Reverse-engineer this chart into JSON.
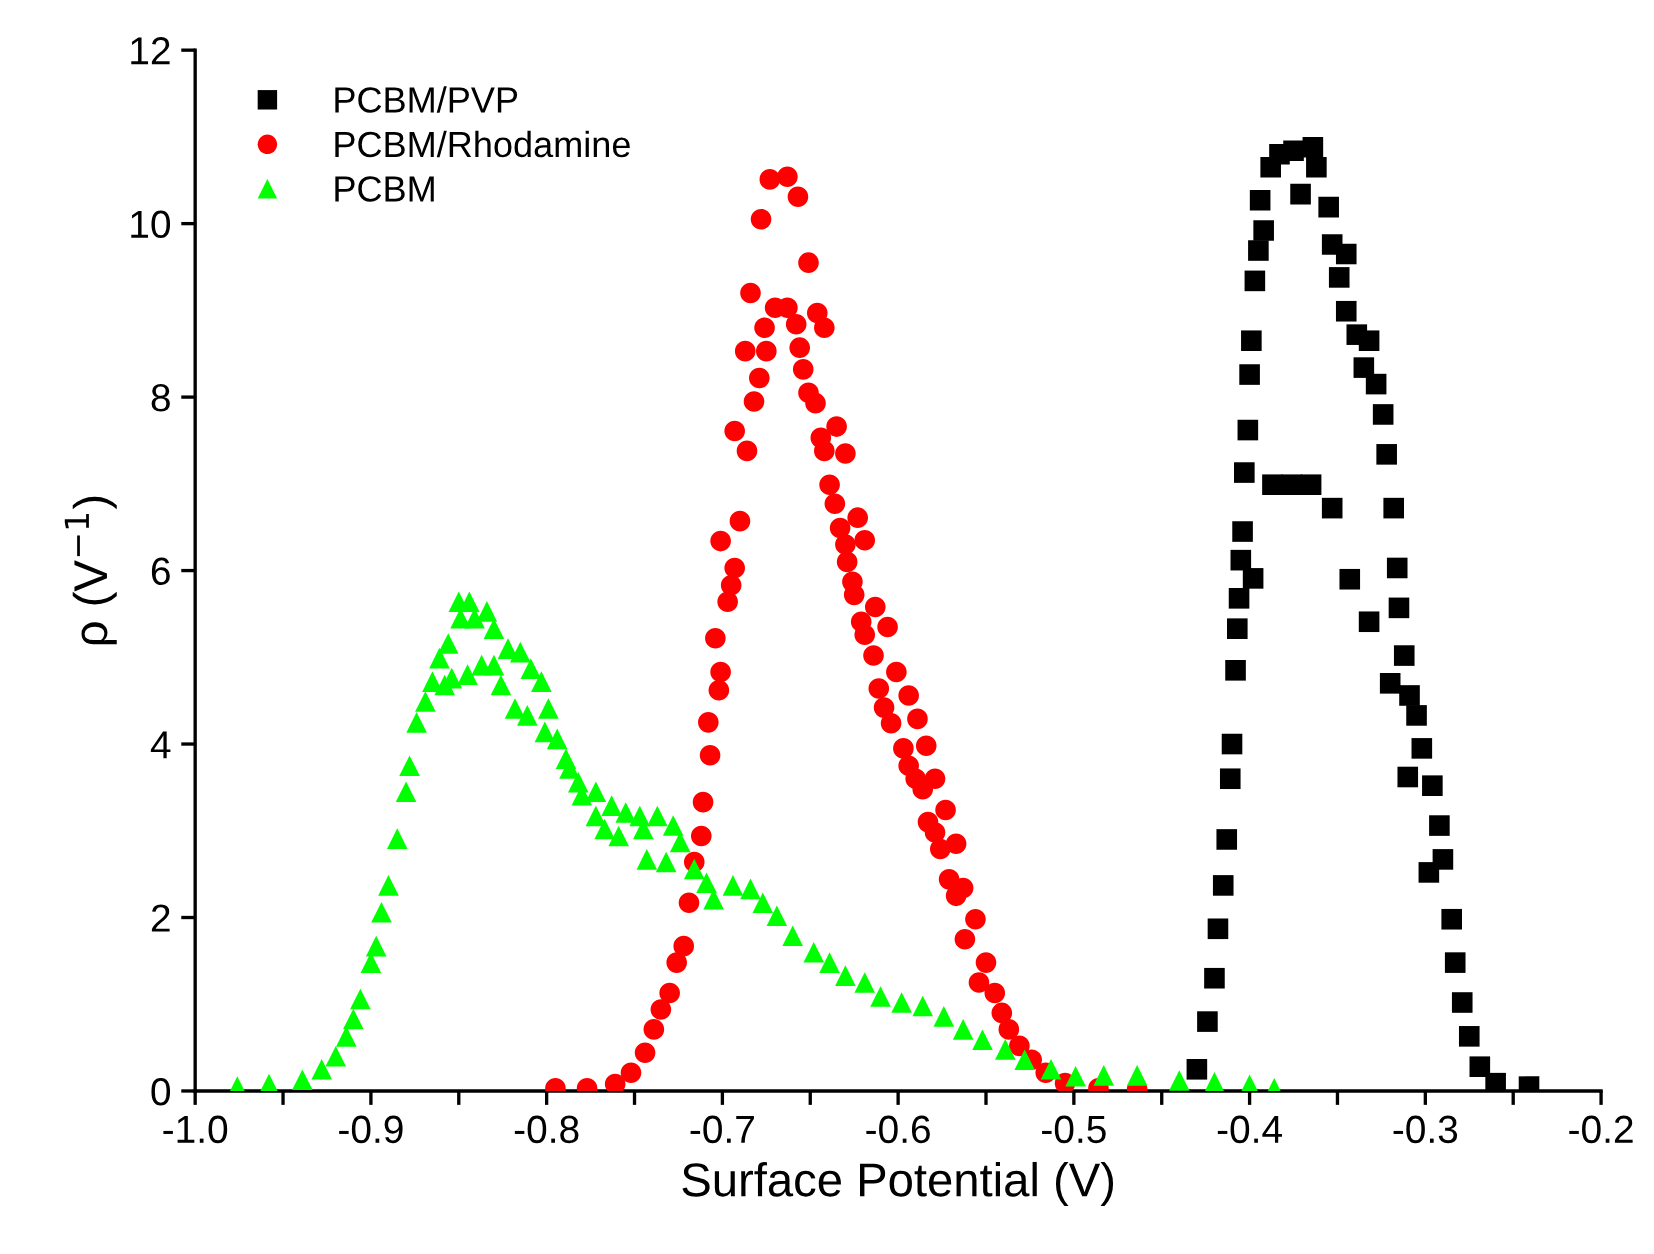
{
  "chart_data": {
    "type": "scatter",
    "xlabel": "Surface Potential (V)",
    "ylabel": "ρ (V$^{−1}$)",
    "xlim": [
      -1.0,
      -0.2
    ],
    "ylim": [
      0,
      12
    ],
    "xticks": [
      {
        "value": -1.0,
        "label": "-1.0"
      },
      {
        "value": -0.95,
        "label": null
      },
      {
        "value": -0.9,
        "label": "-0.9"
      },
      {
        "value": -0.85,
        "label": null
      },
      {
        "value": -0.8,
        "label": "-0.8"
      },
      {
        "value": -0.75,
        "label": null
      },
      {
        "value": -0.7,
        "label": "-0.7"
      },
      {
        "value": -0.65,
        "label": null
      },
      {
        "value": -0.6,
        "label": "-0.6"
      },
      {
        "value": -0.55,
        "label": null
      },
      {
        "value": -0.5,
        "label": "-0.5"
      },
      {
        "value": -0.45,
        "label": null
      },
      {
        "value": -0.4,
        "label": "-0.4"
      },
      {
        "value": -0.35,
        "label": null
      },
      {
        "value": -0.3,
        "label": "-0.3"
      },
      {
        "value": -0.25,
        "label": null
      },
      {
        "value": -0.2,
        "label": "-0.2"
      }
    ],
    "yticks": [
      0,
      2,
      4,
      6,
      8,
      10,
      12
    ],
    "grid": false,
    "legend": "top left",
    "series": [
      {
        "name": "PCBM/PVP",
        "color": "#000000",
        "marker": "square",
        "x": [
          -0.43,
          -0.424,
          -0.42,
          -0.418,
          -0.415,
          -0.413,
          -0.411,
          -0.41,
          -0.408,
          -0.407,
          -0.406,
          -0.405,
          -0.398,
          -0.404,
          -0.403,
          -0.401,
          -0.4,
          -0.399,
          -0.397,
          -0.395,
          -0.392,
          -0.394,
          -0.388,
          -0.383,
          -0.375,
          -0.364,
          -0.362,
          -0.371,
          -0.355,
          -0.353,
          -0.345,
          -0.349,
          -0.345,
          -0.339,
          -0.332,
          -0.335,
          -0.328,
          -0.324,
          -0.322,
          -0.318,
          -0.316,
          -0.315,
          -0.312,
          -0.309,
          -0.305,
          -0.302,
          -0.296,
          -0.292,
          -0.29,
          -0.298,
          -0.285,
          -0.283,
          -0.279,
          -0.275,
          -0.269,
          -0.26,
          -0.241,
          -0.387,
          -0.376,
          -0.365,
          -0.353,
          -0.343,
          -0.332,
          -0.32,
          -0.31
        ],
        "values": [
          0.25,
          0.8,
          1.3,
          1.87,
          2.37,
          2.9,
          3.6,
          4.0,
          4.85,
          5.33,
          5.68,
          6.12,
          5.91,
          6.45,
          7.13,
          7.62,
          8.26,
          8.65,
          9.34,
          9.69,
          9.92,
          10.27,
          10.65,
          10.8,
          10.84,
          10.88,
          10.65,
          10.34,
          10.19,
          9.76,
          9.65,
          9.38,
          8.99,
          8.72,
          8.65,
          8.34,
          8.15,
          7.8,
          7.34,
          6.72,
          6.03,
          5.57,
          5.02,
          4.56,
          4.33,
          3.95,
          3.52,
          3.06,
          2.67,
          2.52,
          1.98,
          1.48,
          1.02,
          0.63,
          0.28,
          0.09,
          0.05,
          6.99,
          6.99,
          6.99,
          6.72,
          5.9,
          5.41,
          4.7,
          3.62
        ]
      },
      {
        "name": "PCBM/Rhodamine",
        "color": "#ff0000",
        "marker": "circle",
        "x": [
          -0.795,
          -0.777,
          -0.761,
          -0.752,
          -0.744,
          -0.739,
          -0.735,
          -0.73,
          -0.726,
          -0.722,
          -0.719,
          -0.716,
          -0.712,
          -0.711,
          -0.707,
          -0.708,
          -0.702,
          -0.701,
          -0.704,
          -0.697,
          -0.695,
          -0.693,
          -0.701,
          -0.69,
          -0.693,
          -0.686,
          -0.682,
          -0.679,
          -0.687,
          -0.675,
          -0.676,
          -0.684,
          -0.67,
          -0.663,
          -0.658,
          -0.678,
          -0.673,
          -0.663,
          -0.657,
          -0.651,
          -0.646,
          -0.642,
          -0.656,
          -0.654,
          -0.651,
          -0.647,
          -0.644,
          -0.635,
          -0.642,
          -0.63,
          -0.639,
          -0.636,
          -0.623,
          -0.619,
          -0.633,
          -0.63,
          -0.629,
          -0.626,
          -0.625,
          -0.613,
          -0.621,
          -0.606,
          -0.619,
          -0.614,
          -0.601,
          -0.611,
          -0.594,
          -0.608,
          -0.604,
          -0.589,
          -0.597,
          -0.584,
          -0.594,
          -0.579,
          -0.59,
          -0.586,
          -0.573,
          -0.583,
          -0.579,
          -0.567,
          -0.576,
          -0.571,
          -0.563,
          -0.567,
          -0.556,
          -0.562,
          -0.55,
          -0.554,
          -0.545,
          -0.541,
          -0.537,
          -0.531,
          -0.524,
          -0.516,
          -0.505,
          -0.486,
          -0.464
        ],
        "values": [
          0.03,
          0.03,
          0.08,
          0.21,
          0.44,
          0.71,
          0.94,
          1.13,
          1.48,
          1.67,
          2.17,
          2.64,
          2.94,
          3.33,
          3.87,
          4.25,
          4.62,
          4.83,
          5.22,
          5.64,
          5.83,
          6.03,
          6.34,
          6.57,
          7.61,
          7.38,
          7.95,
          8.22,
          8.53,
          8.53,
          8.8,
          9.2,
          9.03,
          9.03,
          8.84,
          10.05,
          10.51,
          10.54,
          10.31,
          9.55,
          8.97,
          8.8,
          8.57,
          8.32,
          8.05,
          7.93,
          7.53,
          7.66,
          7.38,
          7.35,
          6.99,
          6.77,
          6.61,
          6.35,
          6.49,
          6.3,
          6.1,
          5.87,
          5.72,
          5.58,
          5.41,
          5.35,
          5.26,
          5.02,
          4.83,
          4.64,
          4.56,
          4.42,
          4.24,
          4.29,
          3.95,
          3.98,
          3.75,
          3.6,
          3.6,
          3.48,
          3.24,
          3.1,
          2.98,
          2.85,
          2.79,
          2.44,
          2.34,
          2.25,
          1.98,
          1.75,
          1.48,
          1.25,
          1.13,
          0.9,
          0.71,
          0.52,
          0.36,
          0.21,
          0.09,
          0.03,
          0.02
        ]
      },
      {
        "name": "PCBM",
        "color": "#00ff00",
        "marker": "triangle",
        "x": [
          -0.976,
          -0.958,
          -0.939,
          -0.928,
          -0.92,
          -0.914,
          -0.91,
          -0.906,
          -0.9,
          -0.897,
          -0.894,
          -0.89,
          -0.885,
          -0.88,
          -0.878,
          -0.874,
          -0.869,
          -0.865,
          -0.861,
          -0.856,
          -0.85,
          -0.844,
          -0.849,
          -0.841,
          -0.834,
          -0.83,
          -0.858,
          -0.854,
          -0.845,
          -0.837,
          -0.83,
          -0.822,
          -0.815,
          -0.826,
          -0.809,
          -0.803,
          -0.818,
          -0.811,
          -0.799,
          -0.801,
          -0.794,
          -0.789,
          -0.787,
          -0.782,
          -0.78,
          -0.772,
          -0.772,
          -0.763,
          -0.767,
          -0.755,
          -0.759,
          -0.745,
          -0.747,
          -0.737,
          -0.743,
          -0.732,
          -0.728,
          -0.724,
          -0.716,
          -0.709,
          -0.705,
          -0.694,
          -0.684,
          -0.677,
          -0.669,
          -0.66,
          -0.648,
          -0.639,
          -0.63,
          -0.619,
          -0.61,
          -0.598,
          -0.586,
          -0.574,
          -0.563,
          -0.552,
          -0.539,
          -0.528,
          -0.513,
          -0.499,
          -0.483,
          -0.464,
          -0.44,
          -0.42,
          -0.4,
          -0.386
        ],
        "values": [
          0.05,
          0.08,
          0.13,
          0.25,
          0.4,
          0.63,
          0.83,
          1.06,
          1.48,
          1.67,
          2.06,
          2.37,
          2.91,
          3.45,
          3.75,
          4.25,
          4.49,
          4.72,
          4.99,
          5.16,
          5.64,
          5.64,
          5.45,
          5.45,
          5.53,
          5.33,
          4.68,
          4.76,
          4.8,
          4.91,
          4.91,
          5.1,
          5.06,
          4.68,
          4.87,
          4.72,
          4.41,
          4.33,
          4.41,
          4.14,
          4.06,
          3.83,
          3.72,
          3.56,
          3.41,
          3.45,
          3.17,
          3.29,
          3.02,
          3.21,
          2.94,
          3.02,
          3.17,
          3.17,
          2.67,
          2.64,
          3.06,
          2.87,
          2.56,
          2.4,
          2.21,
          2.37,
          2.33,
          2.17,
          2.02,
          1.79,
          1.6,
          1.48,
          1.33,
          1.25,
          1.09,
          1.02,
          0.98,
          0.86,
          0.71,
          0.59,
          0.48,
          0.36,
          0.25,
          0.17,
          0.18,
          0.18,
          0.12,
          0.1,
          0.07,
          0.03
        ]
      }
    ]
  }
}
